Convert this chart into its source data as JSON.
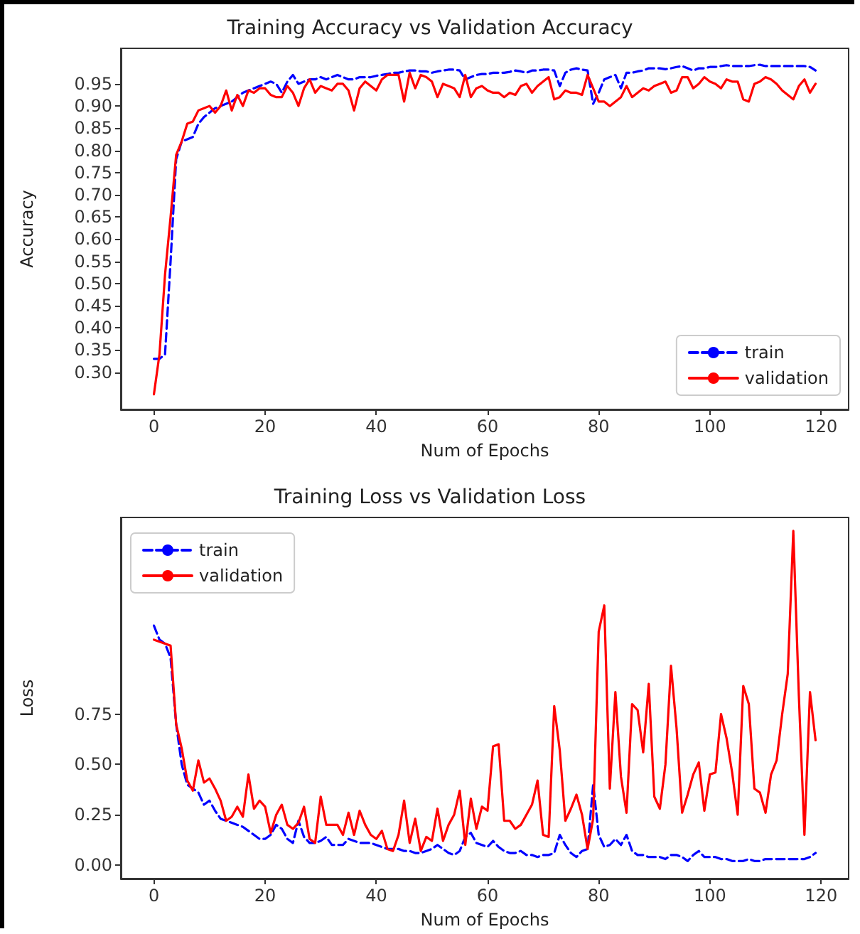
{
  "chart_data": [
    {
      "type": "line",
      "title": "Training Accuracy vs Validation Accuracy",
      "xlabel": "Num of Epochs",
      "ylabel": "Accuracy",
      "x": [
        0,
        1,
        2,
        3,
        4,
        5,
        6,
        7,
        8,
        9,
        10,
        11,
        12,
        13,
        14,
        15,
        16,
        17,
        18,
        19,
        20,
        21,
        22,
        23,
        24,
        25,
        26,
        27,
        28,
        29,
        30,
        31,
        32,
        33,
        34,
        35,
        36,
        37,
        38,
        39,
        40,
        41,
        42,
        43,
        44,
        45,
        46,
        47,
        48,
        49,
        50,
        51,
        52,
        53,
        54,
        55,
        56,
        57,
        58,
        59,
        60,
        61,
        62,
        63,
        64,
        65,
        66,
        67,
        68,
        69,
        70,
        71,
        72,
        73,
        74,
        75,
        76,
        77,
        78,
        79,
        80,
        81,
        82,
        83,
        84,
        85,
        86,
        87,
        88,
        89,
        90,
        91,
        92,
        93,
        94,
        95,
        96,
        97,
        98,
        99,
        100,
        101,
        102,
        103,
        104,
        105,
        106,
        107,
        108,
        109,
        110,
        111,
        112,
        113,
        114,
        115,
        116,
        117,
        118,
        119
      ],
      "series": [
        {
          "name": "train",
          "color": "#0000ff",
          "line_style": "dashed",
          "values": [
            0.33,
            0.33,
            0.34,
            0.55,
            0.78,
            0.82,
            0.825,
            0.83,
            0.86,
            0.875,
            0.885,
            0.895,
            0.9,
            0.905,
            0.91,
            0.92,
            0.93,
            0.935,
            0.94,
            0.945,
            0.95,
            0.955,
            0.95,
            0.93,
            0.955,
            0.97,
            0.95,
            0.955,
            0.96,
            0.96,
            0.965,
            0.96,
            0.965,
            0.97,
            0.965,
            0.96,
            0.96,
            0.965,
            0.965,
            0.965,
            0.968,
            0.97,
            0.972,
            0.975,
            0.975,
            0.978,
            0.98,
            0.98,
            0.978,
            0.978,
            0.975,
            0.978,
            0.98,
            0.982,
            0.982,
            0.98,
            0.96,
            0.965,
            0.97,
            0.972,
            0.972,
            0.975,
            0.975,
            0.975,
            0.977,
            0.98,
            0.978,
            0.975,
            0.98,
            0.98,
            0.982,
            0.982,
            0.98,
            0.945,
            0.975,
            0.982,
            0.985,
            0.982,
            0.98,
            0.905,
            0.93,
            0.96,
            0.965,
            0.97,
            0.94,
            0.975,
            0.975,
            0.978,
            0.98,
            0.985,
            0.985,
            0.985,
            0.983,
            0.985,
            0.988,
            0.99,
            0.985,
            0.98,
            0.985,
            0.985,
            0.988,
            0.988,
            0.99,
            0.992,
            0.99,
            0.99,
            0.99,
            0.99,
            0.992,
            0.993,
            0.99,
            0.99,
            0.99,
            0.99,
            0.99,
            0.99,
            0.99,
            0.99,
            0.988,
            0.98
          ]
        },
        {
          "name": "validation",
          "color": "#ff0000",
          "line_style": "solid",
          "values": [
            0.25,
            0.34,
            0.52,
            0.65,
            0.79,
            0.82,
            0.86,
            0.865,
            0.89,
            0.895,
            0.9,
            0.885,
            0.9,
            0.935,
            0.89,
            0.925,
            0.9,
            0.935,
            0.93,
            0.94,
            0.94,
            0.925,
            0.92,
            0.92,
            0.945,
            0.93,
            0.9,
            0.94,
            0.96,
            0.93,
            0.945,
            0.94,
            0.935,
            0.95,
            0.95,
            0.935,
            0.89,
            0.94,
            0.955,
            0.945,
            0.935,
            0.96,
            0.97,
            0.97,
            0.97,
            0.91,
            0.975,
            0.94,
            0.97,
            0.965,
            0.955,
            0.92,
            0.95,
            0.945,
            0.94,
            0.92,
            0.97,
            0.92,
            0.94,
            0.945,
            0.935,
            0.93,
            0.93,
            0.92,
            0.93,
            0.925,
            0.945,
            0.95,
            0.93,
            0.945,
            0.955,
            0.965,
            0.915,
            0.92,
            0.935,
            0.93,
            0.93,
            0.925,
            0.97,
            0.94,
            0.91,
            0.91,
            0.9,
            0.91,
            0.92,
            0.945,
            0.92,
            0.93,
            0.94,
            0.935,
            0.945,
            0.95,
            0.955,
            0.93,
            0.935,
            0.965,
            0.965,
            0.94,
            0.95,
            0.965,
            0.955,
            0.95,
            0.94,
            0.96,
            0.955,
            0.955,
            0.915,
            0.91,
            0.95,
            0.955,
            0.965,
            0.96,
            0.95,
            0.935,
            0.925,
            0.915,
            0.945,
            0.96,
            0.93,
            0.95
          ]
        }
      ],
      "xlim": [
        -5.95,
        124.95
      ],
      "xticks": [
        0,
        20,
        40,
        60,
        80,
        100,
        120
      ],
      "ylim": [
        0.216,
        1.03
      ],
      "yticks": [
        {
          "value": 0.3,
          "label": "0.30"
        },
        {
          "value": 0.35,
          "label": "0.35"
        },
        {
          "value": 0.4,
          "label": "0.40"
        },
        {
          "value": 0.45,
          "label": "0.45"
        },
        {
          "value": 0.5,
          "label": "0.50"
        },
        {
          "value": 0.55,
          "label": "0.55"
        },
        {
          "value": 0.6,
          "label": "0.60"
        },
        {
          "value": 0.65,
          "label": "0.65"
        },
        {
          "value": 0.7,
          "label": "0.70"
        },
        {
          "value": 0.75,
          "label": "0.75"
        },
        {
          "value": 0.8,
          "label": "0.80"
        },
        {
          "value": 0.85,
          "label": "0.85"
        },
        {
          "value": 0.9,
          "label": "0.90"
        },
        {
          "value": 0.95,
          "label": "0.95"
        }
      ],
      "legend": "bottom right",
      "marker": "none"
    },
    {
      "type": "line",
      "title": "Training Loss vs Validation Loss",
      "xlabel": "Num of Epochs",
      "ylabel": "Loss",
      "x": [
        0,
        1,
        2,
        3,
        4,
        5,
        6,
        7,
        8,
        9,
        10,
        11,
        12,
        13,
        14,
        15,
        16,
        17,
        18,
        19,
        20,
        21,
        22,
        23,
        24,
        25,
        26,
        27,
        28,
        29,
        30,
        31,
        32,
        33,
        34,
        35,
        36,
        37,
        38,
        39,
        40,
        41,
        42,
        43,
        44,
        45,
        46,
        47,
        48,
        49,
        50,
        51,
        52,
        53,
        54,
        55,
        56,
        57,
        58,
        59,
        60,
        61,
        62,
        63,
        64,
        65,
        66,
        67,
        68,
        69,
        70,
        71,
        72,
        73,
        74,
        75,
        76,
        77,
        78,
        79,
        80,
        81,
        82,
        83,
        84,
        85,
        86,
        87,
        88,
        89,
        90,
        91,
        92,
        93,
        94,
        95,
        96,
        97,
        98,
        99,
        100,
        101,
        102,
        103,
        104,
        105,
        106,
        107,
        108,
        109,
        110,
        111,
        112,
        113,
        114,
        115,
        116,
        117,
        118,
        119
      ],
      "series": [
        {
          "name": "train",
          "color": "#0000ff",
          "line_style": "dashed",
          "values": [
            1.19,
            1.12,
            1.1,
            1.03,
            0.7,
            0.5,
            0.4,
            0.38,
            0.36,
            0.3,
            0.32,
            0.27,
            0.23,
            0.22,
            0.21,
            0.2,
            0.19,
            0.17,
            0.15,
            0.13,
            0.13,
            0.15,
            0.2,
            0.18,
            0.13,
            0.11,
            0.22,
            0.14,
            0.11,
            0.11,
            0.12,
            0.14,
            0.1,
            0.1,
            0.1,
            0.13,
            0.12,
            0.11,
            0.11,
            0.11,
            0.1,
            0.09,
            0.08,
            0.08,
            0.08,
            0.07,
            0.07,
            0.06,
            0.06,
            0.07,
            0.08,
            0.1,
            0.08,
            0.06,
            0.05,
            0.07,
            0.14,
            0.16,
            0.11,
            0.1,
            0.09,
            0.12,
            0.09,
            0.07,
            0.06,
            0.06,
            0.07,
            0.05,
            0.05,
            0.04,
            0.05,
            0.05,
            0.06,
            0.15,
            0.1,
            0.06,
            0.04,
            0.07,
            0.08,
            0.4,
            0.15,
            0.09,
            0.1,
            0.13,
            0.1,
            0.15,
            0.07,
            0.05,
            0.05,
            0.04,
            0.04,
            0.04,
            0.03,
            0.05,
            0.05,
            0.04,
            0.02,
            0.05,
            0.07,
            0.04,
            0.04,
            0.04,
            0.03,
            0.03,
            0.02,
            0.02,
            0.02,
            0.03,
            0.02,
            0.02,
            0.03,
            0.03,
            0.03,
            0.03,
            0.03,
            0.03,
            0.03,
            0.03,
            0.04,
            0.06
          ]
        },
        {
          "name": "validation",
          "color": "#ff0000",
          "line_style": "solid",
          "values": [
            1.12,
            1.11,
            1.1,
            1.09,
            0.7,
            0.58,
            0.42,
            0.37,
            0.52,
            0.41,
            0.43,
            0.38,
            0.32,
            0.22,
            0.24,
            0.29,
            0.24,
            0.45,
            0.28,
            0.32,
            0.29,
            0.16,
            0.25,
            0.3,
            0.2,
            0.18,
            0.21,
            0.29,
            0.13,
            0.11,
            0.34,
            0.2,
            0.2,
            0.2,
            0.15,
            0.26,
            0.15,
            0.27,
            0.2,
            0.15,
            0.13,
            0.17,
            0.08,
            0.07,
            0.15,
            0.32,
            0.11,
            0.23,
            0.07,
            0.14,
            0.12,
            0.28,
            0.12,
            0.2,
            0.25,
            0.37,
            0.1,
            0.33,
            0.18,
            0.29,
            0.27,
            0.59,
            0.6,
            0.22,
            0.22,
            0.18,
            0.2,
            0.25,
            0.3,
            0.42,
            0.15,
            0.14,
            0.79,
            0.57,
            0.22,
            0.28,
            0.35,
            0.25,
            0.08,
            0.23,
            1.16,
            1.29,
            0.38,
            0.86,
            0.44,
            0.26,
            0.8,
            0.77,
            0.56,
            0.9,
            0.34,
            0.28,
            0.5,
            0.99,
            0.68,
            0.26,
            0.35,
            0.45,
            0.51,
            0.27,
            0.45,
            0.46,
            0.75,
            0.63,
            0.46,
            0.25,
            0.89,
            0.8,
            0.38,
            0.36,
            0.26,
            0.45,
            0.52,
            0.75,
            0.95,
            1.66,
            0.84,
            0.15,
            0.86,
            0.62
          ]
        }
      ],
      "xlim": [
        -5.95,
        124.95
      ],
      "xticks": [
        0,
        20,
        40,
        60,
        80,
        100,
        120
      ],
      "ylim": [
        -0.067,
        1.727
      ],
      "yticks": [
        {
          "value": 0,
          "label": "0.00"
        },
        {
          "value": 0.25,
          "label": "0.25"
        },
        {
          "value": 0.5,
          "label": "0.50"
        },
        {
          "value": 0.75,
          "label": "0.75"
        }
      ],
      "legend": "top left",
      "marker": "none"
    }
  ]
}
